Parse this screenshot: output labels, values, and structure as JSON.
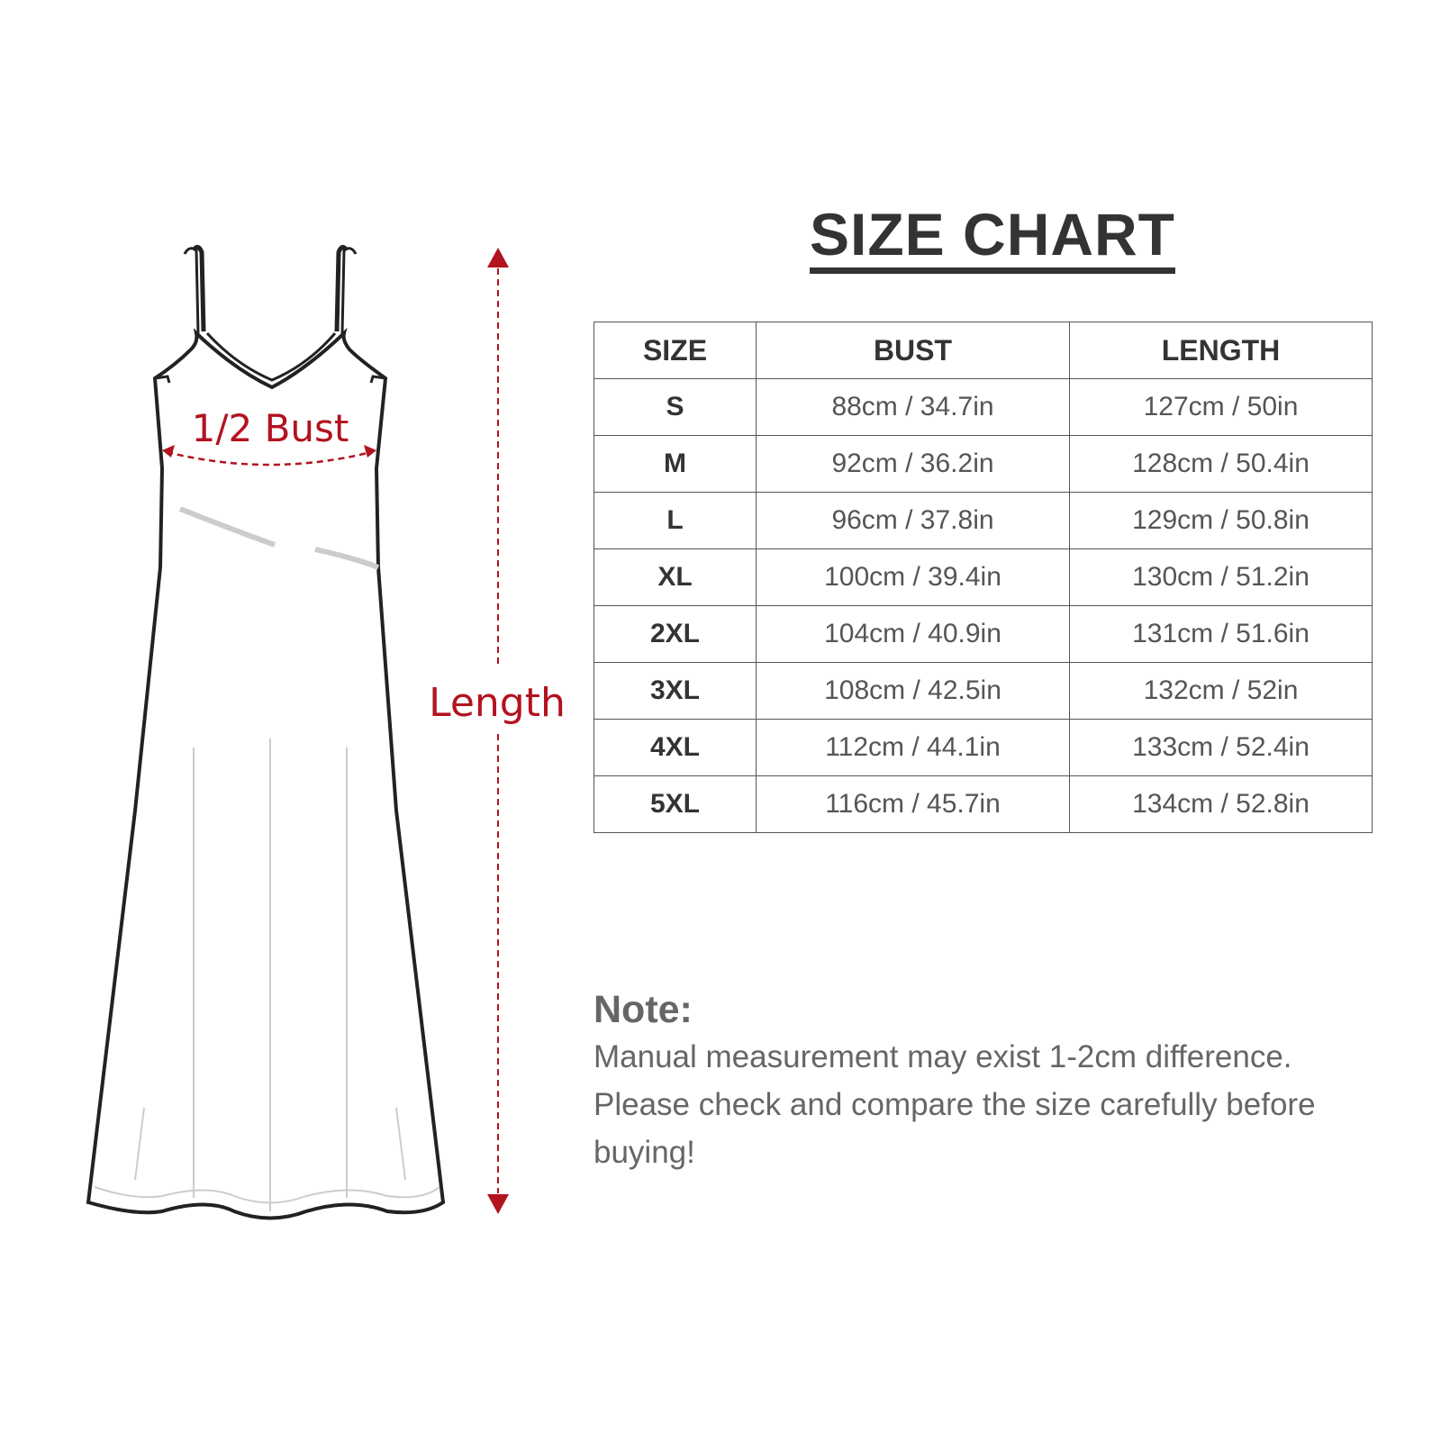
{
  "title": "SIZE CHART",
  "diagram": {
    "bust_label": "1/2 Bust",
    "length_label": "Length",
    "accent_color": "#b3121f"
  },
  "table": {
    "headers": [
      "SIZE",
      "BUST",
      "LENGTH"
    ],
    "rows": [
      [
        "S",
        "88cm / 34.7in",
        "127cm / 50in"
      ],
      [
        "M",
        "92cm / 36.2in",
        "128cm / 50.4in"
      ],
      [
        "L",
        "96cm / 37.8in",
        "129cm / 50.8in"
      ],
      [
        "XL",
        "100cm / 39.4in",
        "130cm / 51.2in"
      ],
      [
        "2XL",
        "104cm / 40.9in",
        "131cm / 51.6in"
      ],
      [
        "3XL",
        "108cm / 42.5in",
        "132cm / 52in"
      ],
      [
        "4XL",
        "112cm / 44.1in",
        "133cm / 52.4in"
      ],
      [
        "5XL",
        "116cm / 45.7in",
        "134cm / 52.8in"
      ]
    ]
  },
  "note": {
    "title": "Note:",
    "lines": [
      "Manual measurement may exist 1-2cm difference.",
      "Please check and compare the size carefully before buying!"
    ]
  }
}
